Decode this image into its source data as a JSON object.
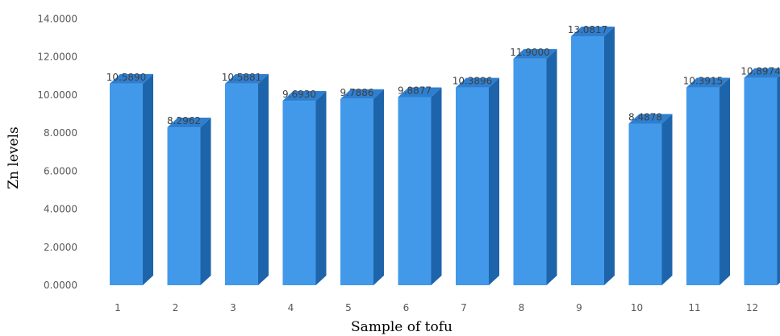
{
  "chart_data": {
    "type": "bar",
    "style": "3d-column",
    "categories": [
      "1",
      "2",
      "3",
      "4",
      "5",
      "6",
      "7",
      "8",
      "9",
      "10",
      "11",
      "12"
    ],
    "values": [
      10.589,
      8.2962,
      10.5881,
      9.693,
      9.7886,
      9.8877,
      10.3896,
      11.9,
      13.0817,
      8.4878,
      10.3915,
      10.8974
    ],
    "data_labels": [
      "10.5890",
      "8.2962",
      "10.5881",
      "9.6930",
      "9.7886",
      "9.8877",
      "10.3896",
      "11.9000",
      "13.0817",
      "8.4878",
      "10.3915",
      "10.8974"
    ],
    "ylabel": "Zn levels",
    "xlabel": "Sample of tofu",
    "ylim": [
      0,
      14
    ],
    "yticks": [
      "0.0000",
      "2.0000",
      "4.0000",
      "6.0000",
      "8.0000",
      "10.0000",
      "12.0000",
      "14.0000"
    ],
    "grid": false,
    "legend": "none",
    "colors": {
      "front": "#4299E9",
      "side": "#1E64AA",
      "top": "#2E7FD0"
    }
  }
}
